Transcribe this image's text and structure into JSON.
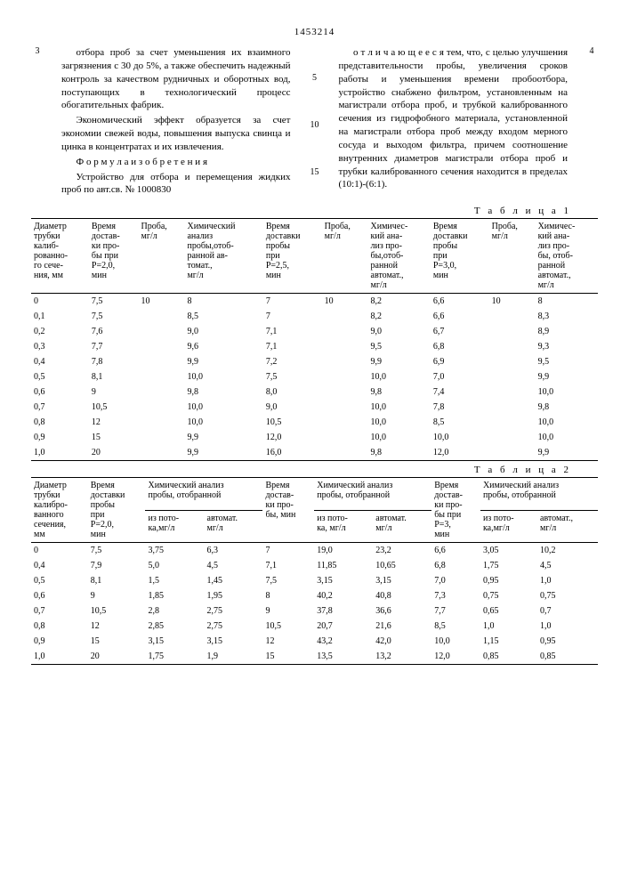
{
  "doc_number": "1453214",
  "page_left": "3",
  "page_right": "4",
  "col_left": {
    "p1": "отбора проб за счет уменьшения их взаимного загрязнения с 30 до 5%, а также обеспечить надежный контроль за качеством рудничных и оборотных вод, поступающих в технологический процесс обогатительных фабрик.",
    "p2": "Экономический эффект образуется за счет экономии свежей воды, повышения выпуска свинца и цинка в концентратах и их извлечения.",
    "p3_label": "Ф о р м у л а   и з о б р е т е н и я",
    "p4": "Устройство для отбора и перемещения жидких проб по авт.св. № 1000830"
  },
  "side5": "5",
  "side10": "10",
  "side15": "15",
  "col_right": {
    "p1": "о т л и ч а ю щ е е с я   тем, что, с целью улучшения представительности пробы, увеличения сроков работы и уменьшения времени пробоотбора, устройство снабжено фильтром, установленным на магистрали отбора проб, и трубкой калиброванного сечения из гидрофобного материала, установленной на магистрали отбора проб между входом мерного сосуда и выходом фильтра, причем соотношение внутренних диаметров магистрали отбора проб и трубки калиброванного сечения находится в пределах (10:1)-(6:1)."
  },
  "table1_label": "Т а б л и ц а   1",
  "table1": {
    "headers": [
      "Диаметр\nтрубки\nкалиб-\nрованно-\nго сече-\nния, мм",
      "Время\nдостав-\nки про-\nбы при\nP=2,0,\nмин",
      "Проба,\nмг/л",
      "Химический\nанализ\nпробы,отоб-\nранной ав-\nтомат.,\nмг/л",
      "Время\nдоставки\nпробы\nпри\nP=2,5,\nмин",
      "Проба,\nмг/л",
      "Химичес-\nкий ана-\nлиз про-\nбы,отоб-\nранной\nавтомат.,\nмг/л",
      "Время\nдоставки\nпробы\nпри\nP=3,0,\nмин",
      "Проба,\nмг/л",
      "Химичес-\nкий ана-\nлиз про-\nбы, отоб-\nранной\nавтомат.,\nмг/л"
    ],
    "rows": [
      [
        "0",
        "7,5",
        "10",
        "8",
        "7",
        "10",
        "8,2",
        "6,6",
        "10",
        "8"
      ],
      [
        "0,1",
        "7,5",
        "",
        "8,5",
        "7",
        "",
        "8,2",
        "6,6",
        "",
        "8,3"
      ],
      [
        "0,2",
        "7,6",
        "",
        "9,0",
        "7,1",
        "",
        "9,0",
        "6,7",
        "",
        "8,9"
      ],
      [
        "0,3",
        "7,7",
        "",
        "9,6",
        "7,1",
        "",
        "9,5",
        "6,8",
        "",
        "9,3"
      ],
      [
        "0,4",
        "7,8",
        "",
        "9,9",
        "7,2",
        "",
        "9,9",
        "6,9",
        "",
        "9,5"
      ],
      [
        "0,5",
        "8,1",
        "",
        "10,0",
        "7,5",
        "",
        "10,0",
        "7,0",
        "",
        "9,9"
      ],
      [
        "0,6",
        "9",
        "",
        "9,8",
        "8,0",
        "",
        "9,8",
        "7,4",
        "",
        "10,0"
      ],
      [
        "0,7",
        "10,5",
        "",
        "10,0",
        "9,0",
        "",
        "10,0",
        "7,8",
        "",
        "9,8"
      ],
      [
        "0,8",
        "12",
        "",
        "10,0",
        "10,5",
        "",
        "10,0",
        "8,5",
        "",
        "10,0"
      ],
      [
        "0,9",
        "15",
        "",
        "9,9",
        "12,0",
        "",
        "10,0",
        "10,0",
        "",
        "10,0"
      ],
      [
        "1,0",
        "20",
        "",
        "9,9",
        "16,0",
        "",
        "9,8",
        "12,0",
        "",
        "9,9"
      ]
    ]
  },
  "table2_label": "Т а б л и ц а   2",
  "table2": {
    "headers": [
      "Диаметр\nтрубки\nкалибро-\nванного\nсечения,\nмм",
      "Время\nдоставки\nпробы\nпри\nP=2,0,\nмин",
      "Химический анализ\nпробы, отобранной",
      "Время\nдостав-\nки про-\nбы, мин",
      "Химический анализ\nпробы, отобранной",
      "Время\nдостав-\nки про-\nбы при\nP=3,\nмин",
      "Химический анализ\nпробы, отобранной"
    ],
    "sub": [
      "из пото-\nка,мг/л",
      "автомат.\nмг/л",
      "из пото-\nка, мг/л",
      "автомат.\nмг/л",
      "из пото-\nка,мг/л",
      "автомат.,\nмг/л"
    ],
    "rows": [
      [
        "0",
        "7,5",
        "3,75",
        "6,3",
        "7",
        "19,0",
        "23,2",
        "6,6",
        "3,05",
        "10,2"
      ],
      [
        "0,4",
        "7,9",
        "5,0",
        "4,5",
        "7,1",
        "11,85",
        "10,65",
        "6,8",
        "1,75",
        "4,5"
      ],
      [
        "0,5",
        "8,1",
        "1,5",
        "1,45",
        "7,5",
        "3,15",
        "3,15",
        "7,0",
        "0,95",
        "1,0"
      ],
      [
        "0,6",
        "9",
        "1,85",
        "1,95",
        "8",
        "40,2",
        "40,8",
        "7,3",
        "0,75",
        "0,75"
      ],
      [
        "0,7",
        "10,5",
        "2,8",
        "2,75",
        "9",
        "37,8",
        "36,6",
        "7,7",
        "0,65",
        "0,7"
      ],
      [
        "0,8",
        "12",
        "2,85",
        "2,75",
        "10,5",
        "20,7",
        "21,6",
        "8,5",
        "1,0",
        "1,0"
      ],
      [
        "0,9",
        "15",
        "3,15",
        "3,15",
        "12",
        "43,2",
        "42,0",
        "10,0",
        "1,15",
        "0,95"
      ],
      [
        "1,0",
        "20",
        "1,75",
        "1,9",
        "15",
        "13,5",
        "13,2",
        "12,0",
        "0,85",
        "0,85"
      ]
    ]
  }
}
